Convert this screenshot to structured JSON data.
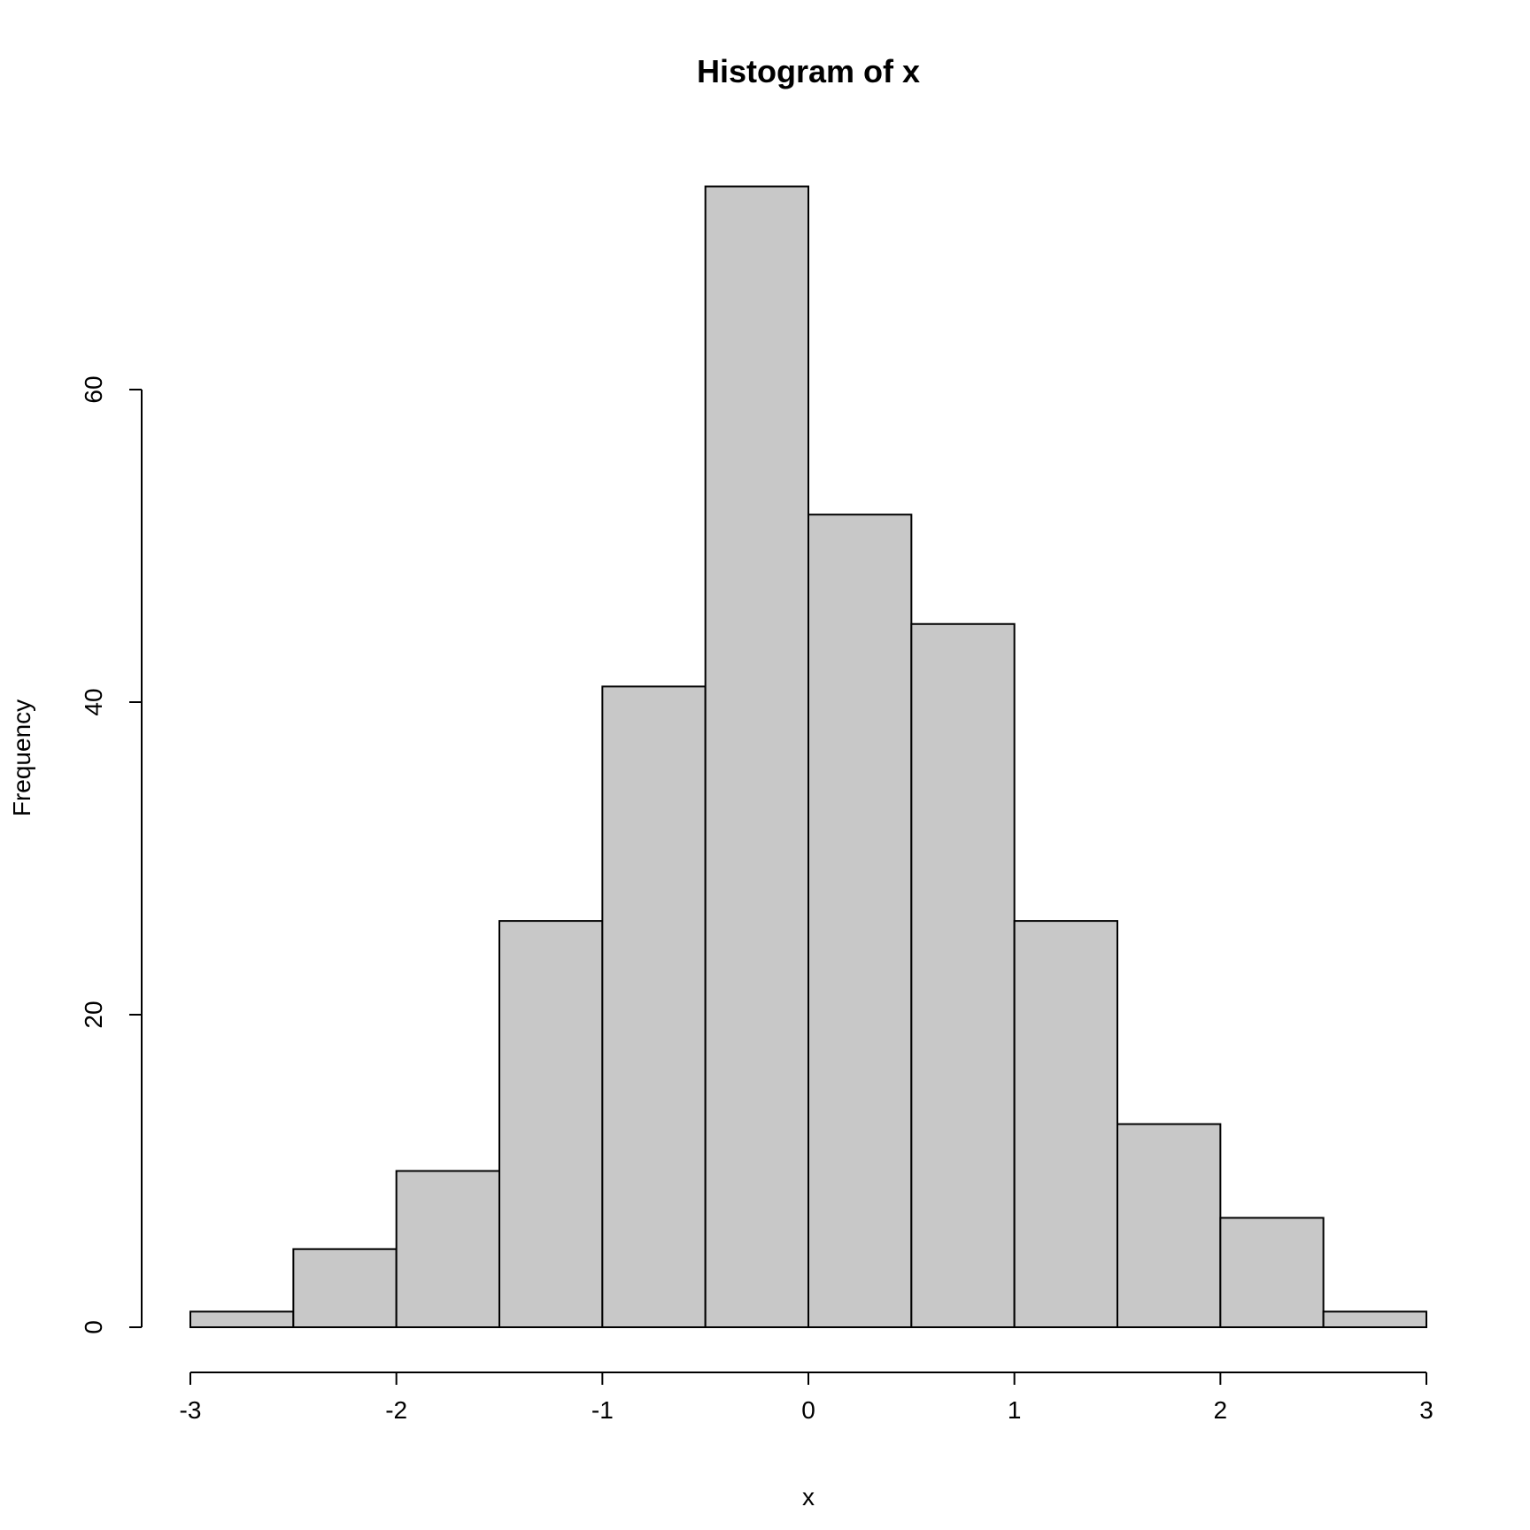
{
  "chart_data": {
    "type": "bar",
    "title": "Histogram of x",
    "xlabel": "x",
    "ylabel": "Frequency",
    "bins": [
      {
        "start": -3.0,
        "end": -2.5,
        "count": 1
      },
      {
        "start": -2.5,
        "end": -2.0,
        "count": 5
      },
      {
        "start": -2.0,
        "end": -1.5,
        "count": 10
      },
      {
        "start": -1.5,
        "end": -1.0,
        "count": 26
      },
      {
        "start": -1.0,
        "end": -0.5,
        "count": 41
      },
      {
        "start": -0.5,
        "end": 0.0,
        "count": 73
      },
      {
        "start": 0.0,
        "end": 0.5,
        "count": 52
      },
      {
        "start": 0.5,
        "end": 1.0,
        "count": 45
      },
      {
        "start": 1.0,
        "end": 1.5,
        "count": 26
      },
      {
        "start": 1.5,
        "end": 2.0,
        "count": 13
      },
      {
        "start": 2.0,
        "end": 2.5,
        "count": 7
      },
      {
        "start": 2.5,
        "end": 3.0,
        "count": 1
      }
    ],
    "xlim": [
      -3,
      3
    ],
    "ylim": [
      0,
      73
    ],
    "x_ticks": [
      -3,
      -2,
      -1,
      0,
      1,
      2,
      3
    ],
    "x_tick_labels": [
      "-3",
      "-2",
      "-1",
      "0",
      "1",
      "2",
      "3"
    ],
    "y_ticks": [
      0,
      20,
      40,
      60
    ],
    "y_tick_labels": [
      "0",
      "20",
      "40",
      "60"
    ],
    "bar_color": "#c8c8c8",
    "grid": false,
    "legend": "none"
  }
}
